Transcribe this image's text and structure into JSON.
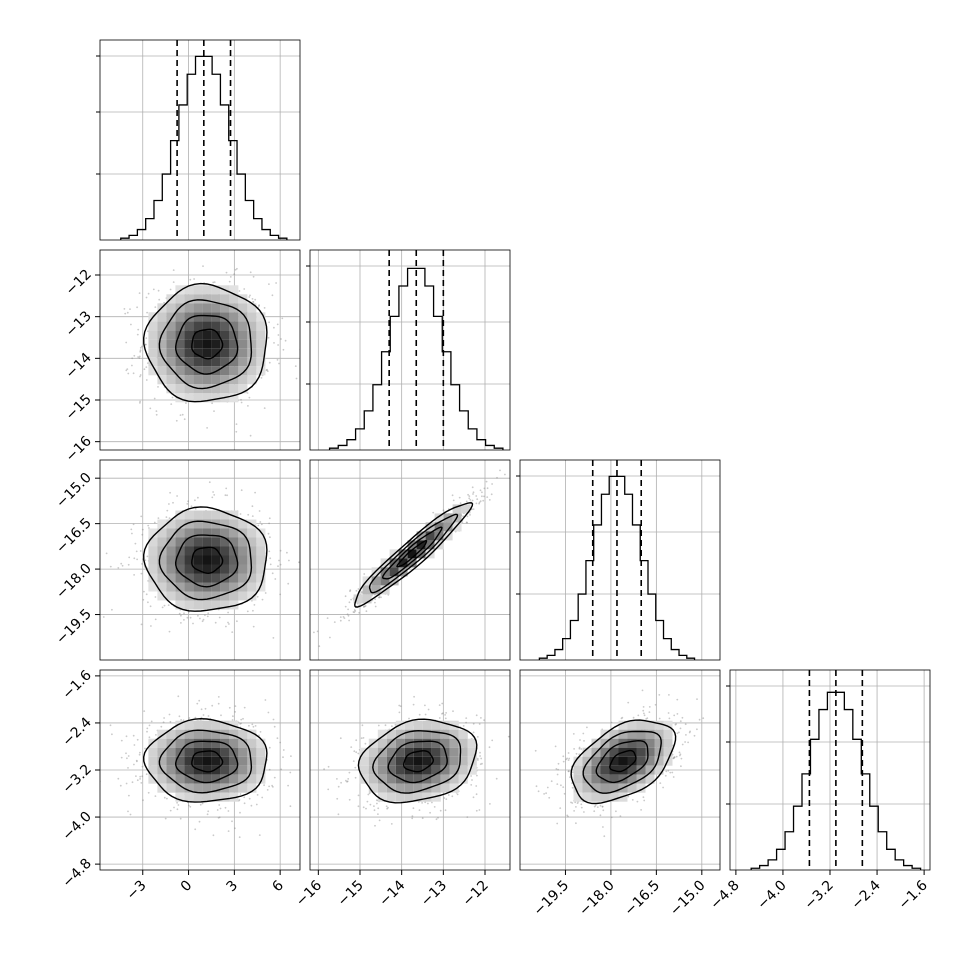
{
  "chart_data": {
    "type": "corner",
    "title": "",
    "parameters": [
      {
        "xlim": [
          -5.8,
          7.3
        ],
        "xticks": [
          -3,
          0,
          3,
          6
        ],
        "tick_labels": [
          "−3",
          "0",
          "3",
          "6"
        ]
      },
      {
        "xlim": [
          -16.2,
          -11.4
        ],
        "xticks": [
          -16,
          -15,
          -14,
          -13,
          -12
        ],
        "tick_labels": [
          "−16",
          "−15",
          "−14",
          "−13",
          "−12"
        ]
      },
      {
        "xlim": [
          -21.0,
          -14.4
        ],
        "xticks": [
          -19.5,
          -18.0,
          -16.5,
          -15.0
        ],
        "tick_labels": [
          "−19.5",
          "−18.0",
          "−16.5",
          "−15.0"
        ]
      },
      {
        "xlim": [
          -4.9,
          -1.5
        ],
        "xticks": [
          -4.8,
          -4.0,
          -3.2,
          -2.4,
          -1.6
        ],
        "tick_labels": [
          "−4.8",
          "−4.0",
          "−3.2",
          "−2.4",
          "−1.6"
        ]
      }
    ],
    "histograms": [
      {
        "quantiles": [
          -0.75,
          1.0,
          2.75
        ],
        "median": 1.0,
        "sigma": 1.7,
        "peak_fraction": 0.93
      },
      {
        "quantiles": [
          -14.3,
          -13.65,
          -13.0
        ],
        "median": -13.65,
        "sigma": 0.65,
        "peak_fraction": 0.92
      },
      {
        "quantiles": [
          -18.6,
          -17.8,
          -17.0
        ],
        "median": -17.8,
        "sigma": 0.8,
        "peak_fraction": 0.93
      },
      {
        "quantiles": [
          -3.55,
          -3.1,
          -2.65
        ],
        "median": -3.1,
        "sigma": 0.45,
        "peak_fraction": 0.9
      }
    ],
    "pairs": [
      {
        "x": 0,
        "y": 1,
        "center": [
          1.2,
          -13.65
        ],
        "sx": 2.0,
        "sy": 0.7,
        "rho": 0.0
      },
      {
        "x": 0,
        "y": 2,
        "center": [
          1.2,
          -17.7
        ],
        "sx": 2.0,
        "sy": 0.85,
        "rho": 0.0
      },
      {
        "x": 1,
        "y": 2,
        "center": [
          -13.75,
          -17.5
        ],
        "sx": 0.7,
        "sy": 0.85,
        "rho": 0.95
      },
      {
        "x": 0,
        "y": 3,
        "center": [
          1.2,
          -3.05
        ],
        "sx": 2.0,
        "sy": 0.35,
        "rho": 0.0
      },
      {
        "x": 1,
        "y": 3,
        "center": [
          -13.6,
          -3.05
        ],
        "sx": 0.7,
        "sy": 0.35,
        "rho": 0.2
      },
      {
        "x": 2,
        "y": 3,
        "center": [
          -17.6,
          -3.05
        ],
        "sx": 0.85,
        "sy": 0.35,
        "rho": 0.45
      }
    ],
    "contour_levels_sigma": [
      0.5,
      1.0,
      1.5,
      2.0
    ],
    "grid": true,
    "legend": "none"
  }
}
